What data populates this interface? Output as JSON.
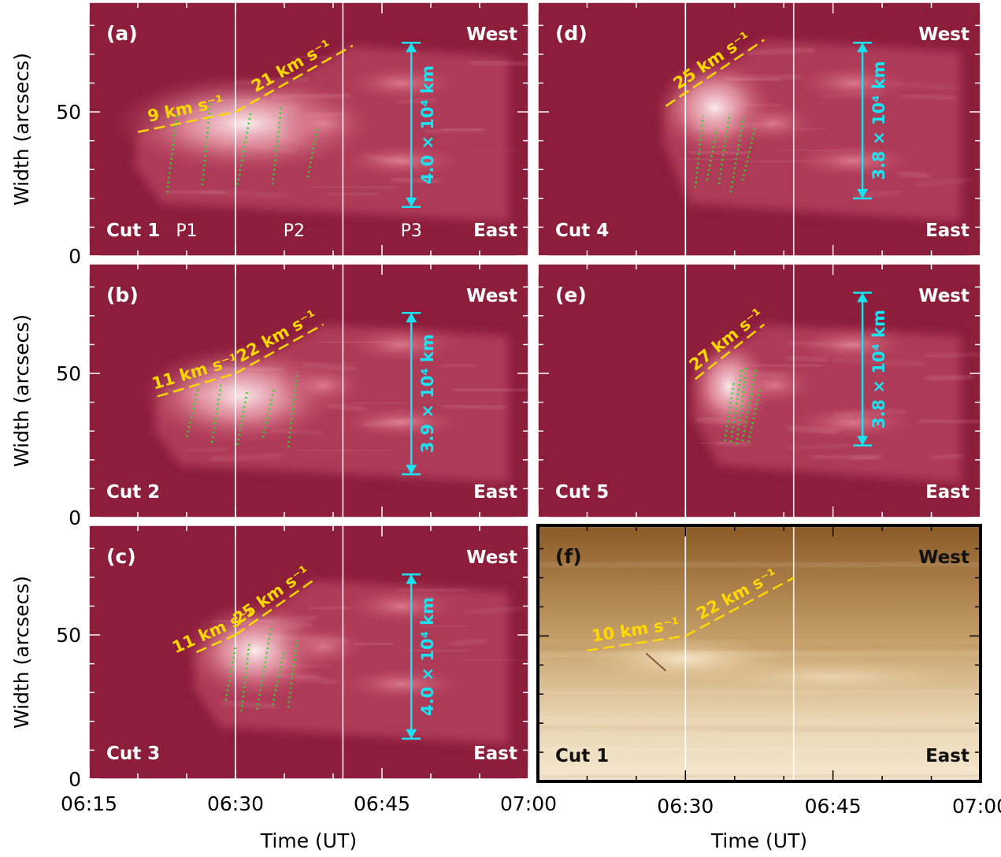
{
  "figure": {
    "x_label": "Time (UT)",
    "y_label": "Width (arcsecs)",
    "x_ticks": [
      "06:15",
      "06:30",
      "06:45",
      "07:00"
    ],
    "y_ticks": [
      "0",
      "50"
    ],
    "colors": {
      "aia_panel": "#8c1d3b",
      "xrt_panel": "#a77a44",
      "velocity_text": "#ffd800",
      "scale_bar": "#19e3f0",
      "stripe_dots": "#22dd22"
    }
  },
  "chart_data": [
    {
      "type": "heatmap",
      "panel": "(a)",
      "cut": "Cut 1",
      "top_label": "West",
      "bottom_label": "East",
      "phases": [
        "P1",
        "P2",
        "P3"
      ],
      "xlim": [
        "06:15",
        "07:00"
      ],
      "ylim": [
        0,
        88
      ],
      "phase_lines": [
        "06:30",
        "06:41"
      ],
      "fronts": [
        {
          "label": "9 km s⁻¹",
          "velocity_km_s": 9,
          "from": [
            "06:20",
            43
          ],
          "to": [
            "06:30",
            50
          ]
        },
        {
          "label": "21 km s⁻¹",
          "velocity_km_s": 21,
          "from": [
            "06:30",
            50
          ],
          "to": [
            "06:42",
            73
          ]
        }
      ],
      "scale_bar": {
        "label": "4.0 × 10⁴ km",
        "time": "06:48",
        "y_range": [
          17,
          74
        ]
      }
    },
    {
      "type": "heatmap",
      "panel": "(b)",
      "cut": "Cut 2",
      "top_label": "West",
      "bottom_label": "East",
      "xlim": [
        "06:15",
        "07:00"
      ],
      "ylim": [
        0,
        88
      ],
      "phase_lines": [
        "06:30",
        "06:41"
      ],
      "fronts": [
        {
          "label": "11 km s⁻¹",
          "velocity_km_s": 11,
          "from": [
            "06:22",
            42
          ],
          "to": [
            "06:30",
            50
          ]
        },
        {
          "label": "22 km s⁻¹",
          "velocity_km_s": 22,
          "from": [
            "06:30",
            50
          ],
          "to": [
            "06:39",
            67
          ]
        }
      ],
      "scale_bar": {
        "label": "3.9 × 10⁴ km",
        "time": "06:48",
        "y_range": [
          15,
          71
        ]
      }
    },
    {
      "type": "heatmap",
      "panel": "(c)",
      "cut": "Cut 3",
      "top_label": "West",
      "bottom_label": "East",
      "xlim": [
        "06:15",
        "07:00"
      ],
      "ylim": [
        0,
        88
      ],
      "phase_lines": [
        "06:30",
        "06:41"
      ],
      "fronts": [
        {
          "label": "11 km s⁻¹",
          "velocity_km_s": 11,
          "from": [
            "06:26",
            44
          ],
          "to": [
            "06:30",
            50
          ]
        },
        {
          "label": "25 km s⁻¹",
          "velocity_km_s": 25,
          "from": [
            "06:30",
            50
          ],
          "to": [
            "06:38",
            69
          ]
        }
      ],
      "scale_bar": {
        "label": "4.0 × 10⁴ km",
        "time": "06:48",
        "y_range": [
          14,
          71
        ]
      }
    },
    {
      "type": "heatmap",
      "panel": "(d)",
      "cut": "Cut 4",
      "top_label": "West",
      "bottom_label": "East",
      "xlim": [
        "06:15",
        "07:00"
      ],
      "ylim": [
        0,
        88
      ],
      "phase_lines": [
        "06:30",
        "06:41"
      ],
      "fronts": [
        {
          "label": "25 km s⁻¹",
          "velocity_km_s": 25,
          "from": [
            "06:28",
            52
          ],
          "to": [
            "06:38",
            75
          ]
        }
      ],
      "scale_bar": {
        "label": "3.8 × 10⁴ km",
        "time": "06:48",
        "y_range": [
          20,
          74
        ]
      }
    },
    {
      "type": "heatmap",
      "panel": "(e)",
      "cut": "Cut 5",
      "top_label": "West",
      "bottom_label": "East",
      "xlim": [
        "06:15",
        "07:00"
      ],
      "ylim": [
        0,
        88
      ],
      "phase_lines": [
        "06:30",
        "06:41"
      ],
      "fronts": [
        {
          "label": "27 km s⁻¹",
          "velocity_km_s": 27,
          "from": [
            "06:31",
            48
          ],
          "to": [
            "06:38",
            67
          ]
        }
      ],
      "scale_bar": {
        "label": "3.8 × 10⁴ km",
        "time": "06:48",
        "y_range": [
          25,
          78
        ]
      }
    },
    {
      "type": "heatmap",
      "panel": "(f)",
      "cut": "Cut 1",
      "top_label": "West",
      "bottom_label": "East",
      "xlim": [
        "06:15",
        "07:00"
      ],
      "ylim": [
        0,
        88
      ],
      "phase_lines": [
        "06:30",
        "06:41"
      ],
      "fronts": [
        {
          "label": "10 km s⁻¹",
          "velocity_km_s": 10,
          "from": [
            "06:20",
            45
          ],
          "to": [
            "06:30",
            50
          ]
        },
        {
          "label": "22 km s⁻¹",
          "velocity_km_s": 22,
          "from": [
            "06:30",
            50
          ],
          "to": [
            "06:41",
            70
          ]
        }
      ]
    }
  ]
}
